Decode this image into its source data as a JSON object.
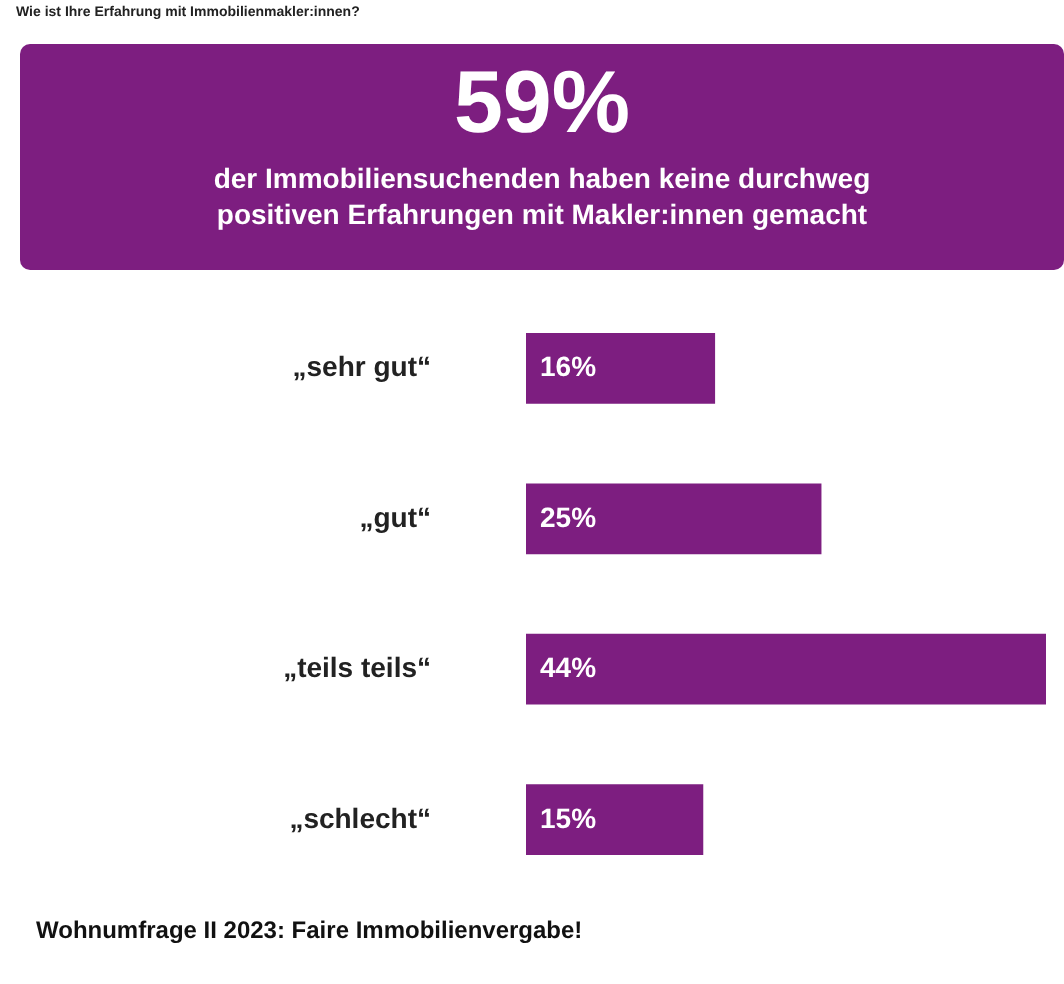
{
  "chart_data": {
    "type": "bar",
    "orientation": "horizontal",
    "title": "Wie ist Ihre Erfahrung mit Immobilienmakler:innen?",
    "subtitle": "59%",
    "annotations": [
      "der Immobiliensuchenden haben keine durchweg positiven Erfahrungen mit Makler:innen gemacht",
      "Wohnumfrage II 2023: Faire Immobilienvergabe!"
    ],
    "categories": [
      "„sehr gut“",
      "„gut“",
      "„teils teils“",
      "„schlecht“"
    ],
    "values": [
      16,
      25,
      44,
      15
    ],
    "value_labels": [
      "16%",
      "25%",
      "44%",
      "15%"
    ],
    "color": "#7d1e80"
  }
}
